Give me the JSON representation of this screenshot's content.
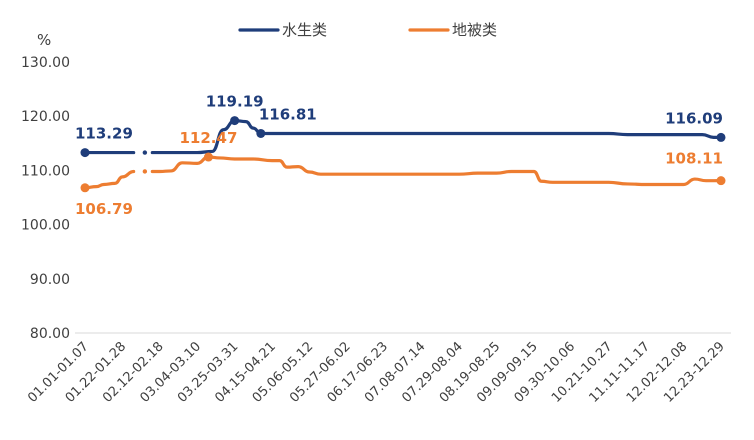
{
  "chart_data": {
    "type": "line",
    "title": "",
    "xlabel": "",
    "ylabel": "%",
    "ylim": [
      80,
      130
    ],
    "yticks": [
      "80.00",
      "90.00",
      "100.00",
      "110.00",
      "120.00",
      "130.00"
    ],
    "grid": false,
    "legend_position": "top-center",
    "categories": [
      "01.01-01.07",
      "01.22-01.28",
      "02.12-02.18",
      "03.04-03.10",
      "03.25-03.31",
      "04.15-04.21",
      "05.06-05.12",
      "05.27-06.02",
      "06.17-06.23",
      "07.08-07.14",
      "07.29-08.04",
      "08.19-08.25",
      "09.09-09.15",
      "09.30-10.06",
      "10.21-10.27",
      "11.11-11.17",
      "12.02-12.08",
      "12.23-12.29"
    ],
    "series": [
      {
        "name": "水生类",
        "color": "#1F3D7A",
        "segments": [
          [
            [
              0,
              113.29
            ],
            [
              0.5,
              113.29
            ],
            [
              1,
              113.29
            ],
            [
              1.3,
              113.29
            ]
          ],
          [
            [
              1.6,
              113.29
            ]
          ],
          [
            [
              1.8,
              113.29
            ],
            [
              2,
              113.29
            ],
            [
              2.5,
              113.29
            ],
            [
              3,
              113.29
            ],
            [
              3.4,
              113.5
            ],
            [
              3.7,
              117.5
            ],
            [
              4,
              119.19
            ],
            [
              4.3,
              119.0
            ],
            [
              4.5,
              117.8
            ],
            [
              4.7,
              116.81
            ],
            [
              5,
              116.81
            ],
            [
              6,
              116.81
            ],
            [
              7,
              116.81
            ],
            [
              8,
              116.81
            ],
            [
              9,
              116.81
            ],
            [
              10,
              116.81
            ],
            [
              11,
              116.81
            ],
            [
              12,
              116.81
            ],
            [
              13,
              116.81
            ],
            [
              14,
              116.81
            ],
            [
              14.5,
              116.6
            ],
            [
              15,
              116.6
            ],
            [
              16,
              116.6
            ],
            [
              16.5,
              116.6
            ],
            [
              16.8,
              116.1
            ],
            [
              17,
              116.09
            ]
          ]
        ],
        "labels": [
          {
            "text": "113.29",
            "x": 0,
            "y": 113.29
          },
          {
            "text": "119.19",
            "x": 4,
            "y": 119.19
          },
          {
            "text": "116.81",
            "x": 4.7,
            "y": 116.81
          },
          {
            "text": "116.09",
            "x": 17,
            "y": 116.09
          }
        ],
        "markers": [
          [
            0,
            113.29
          ],
          [
            4,
            119.19
          ],
          [
            4.7,
            116.81
          ],
          [
            17,
            116.09
          ]
        ]
      },
      {
        "name": "地被类",
        "color": "#ED7D31",
        "segments": [
          [
            [
              0,
              106.79
            ],
            [
              0.3,
              107.0
            ],
            [
              0.5,
              107.4
            ],
            [
              0.8,
              107.6
            ],
            [
              1,
              108.8
            ],
            [
              1.3,
              109.8
            ]
          ],
          [
            [
              1.6,
              109.8
            ]
          ],
          [
            [
              1.8,
              109.8
            ],
            [
              2,
              109.8
            ],
            [
              2.3,
              109.9
            ],
            [
              2.6,
              111.4
            ],
            [
              3,
              111.3
            ],
            [
              3.3,
              112.47
            ],
            [
              3.6,
              112.3
            ],
            [
              4,
              112.1
            ],
            [
              4.5,
              112.1
            ],
            [
              5,
              111.8
            ],
            [
              5.2,
              111.8
            ],
            [
              5.4,
              110.6
            ],
            [
              5.7,
              110.7
            ],
            [
              6,
              109.7
            ],
            [
              6.3,
              109.3
            ],
            [
              7,
              109.3
            ],
            [
              8,
              109.3
            ],
            [
              9,
              109.3
            ],
            [
              10,
              109.3
            ],
            [
              10.5,
              109.5
            ],
            [
              11,
              109.5
            ],
            [
              11.4,
              109.8
            ],
            [
              12,
              109.8
            ],
            [
              12.2,
              108.0
            ],
            [
              12.5,
              107.8
            ],
            [
              13,
              107.8
            ],
            [
              14,
              107.8
            ],
            [
              14.5,
              107.5
            ],
            [
              15,
              107.4
            ],
            [
              16,
              107.4
            ],
            [
              16.3,
              108.4
            ],
            [
              16.6,
              108.1
            ],
            [
              17,
              108.11
            ]
          ]
        ],
        "labels": [
          {
            "text": "106.79",
            "x": 0,
            "y": 106.79
          },
          {
            "text": "112.47",
            "x": 3.3,
            "y": 112.47
          },
          {
            "text": "108.11",
            "x": 17,
            "y": 108.11
          }
        ],
        "markers": [
          [
            0,
            106.79
          ],
          [
            3.3,
            112.47
          ],
          [
            17,
            108.11
          ]
        ]
      }
    ]
  }
}
